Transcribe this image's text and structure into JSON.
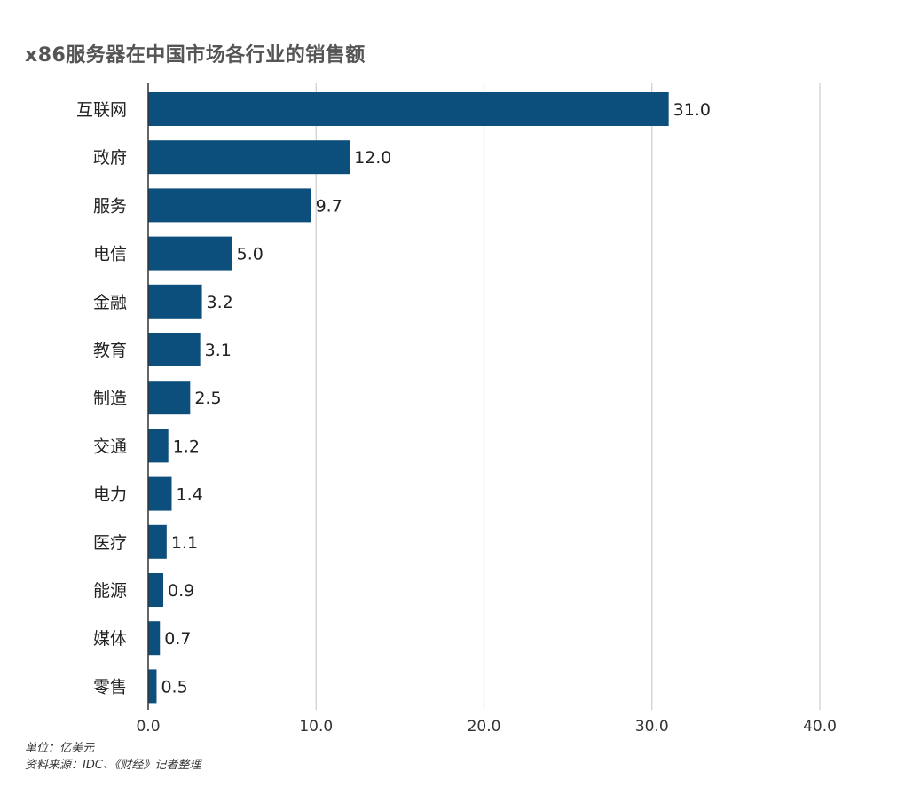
{
  "title": "x86服务器在中国市场各行业的销售额",
  "footer": {
    "unit": "单位：亿美元",
    "source": "资料来源：IDC、《财经》记者整理"
  },
  "colors": {
    "bar": "#0d4f7c",
    "grid": "#cccccc",
    "axis": "#333333"
  },
  "chart_data": {
    "type": "bar",
    "orientation": "horizontal",
    "categories": [
      "互联网",
      "政府",
      "服务",
      "电信",
      "金融",
      "教育",
      "制造",
      "交通",
      "电力",
      "医疗",
      "能源",
      "媒体",
      "零售"
    ],
    "values": [
      31.0,
      12.0,
      9.7,
      5.0,
      3.2,
      3.1,
      2.5,
      1.2,
      1.4,
      1.1,
      0.9,
      0.7,
      0.5
    ],
    "value_labels": [
      "31.0",
      "12.0",
      "9.7",
      "5.0",
      "3.2",
      "3.1",
      "2.5",
      "1.2",
      "1.4",
      "1.1",
      "0.9",
      "0.7",
      "0.5"
    ],
    "xlim": [
      0,
      40
    ],
    "xticks": [
      0,
      10,
      20,
      30,
      40
    ],
    "xtick_labels": [
      "0.0",
      "10.0",
      "20.0",
      "30.0",
      "40.0"
    ],
    "grid": true,
    "legend": "none"
  }
}
